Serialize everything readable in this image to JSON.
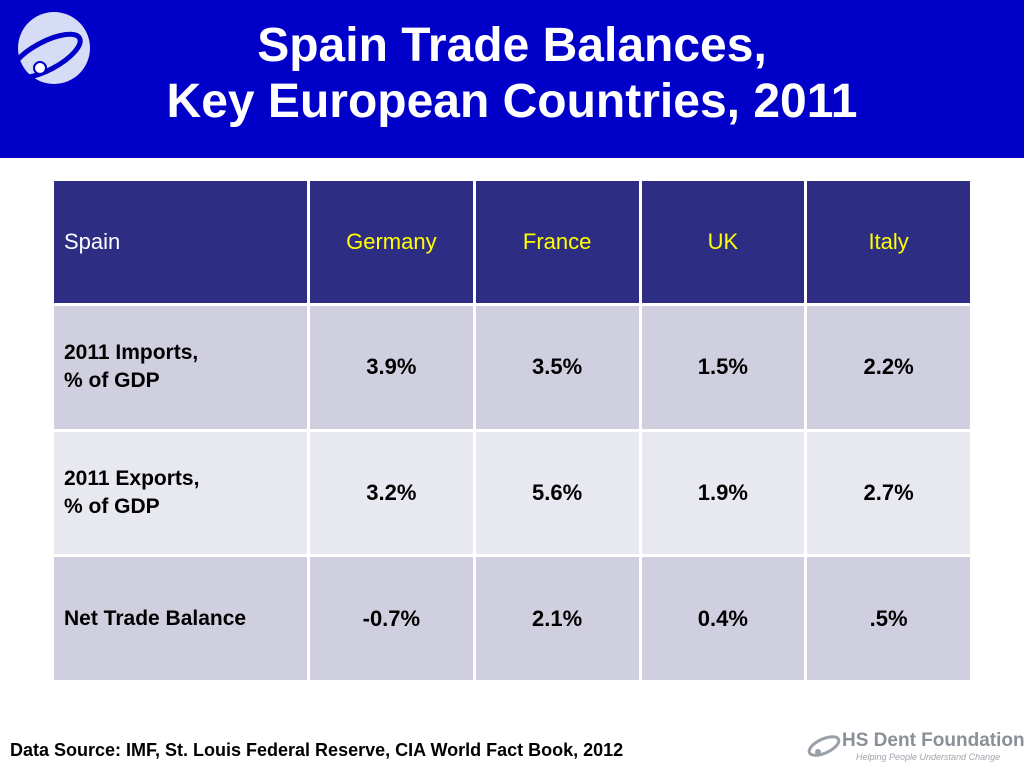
{
  "header": {
    "title_line1": "Spain Trade Balances,",
    "title_line2": "Key European Countries, 2011",
    "background_color": "#0000c8",
    "logo_icon": "swirl-globe-icon"
  },
  "table": {
    "columns": [
      "Spain",
      "Germany",
      "France",
      "UK",
      "Italy"
    ],
    "rows": [
      {
        "label_line1": "2011 Imports,",
        "label_line2": "% of GDP",
        "values": [
          "3.9%",
          "3.5%",
          "1.5%",
          "2.2%"
        ]
      },
      {
        "label_line1": "2011 Exports,",
        "label_line2": "% of GDP",
        "values": [
          "3.2%",
          "5.6%",
          "1.9%",
          "2.7%"
        ]
      },
      {
        "label_line1": "Net Trade Balance",
        "label_line2": "",
        "values": [
          "-0.7%",
          "2.1%",
          "0.4%",
          ".5%"
        ]
      }
    ],
    "header_color": "#2d2d84",
    "header_text_color": "#ffff00"
  },
  "footer": {
    "source": "Data Source: IMF, St. Louis Federal Reserve, CIA World Fact Book, 2012"
  },
  "brand": {
    "name": "HS Dent Foundation",
    "tagline": "Helping People Understand Change",
    "logo_icon": "swirl-logo-icon"
  }
}
